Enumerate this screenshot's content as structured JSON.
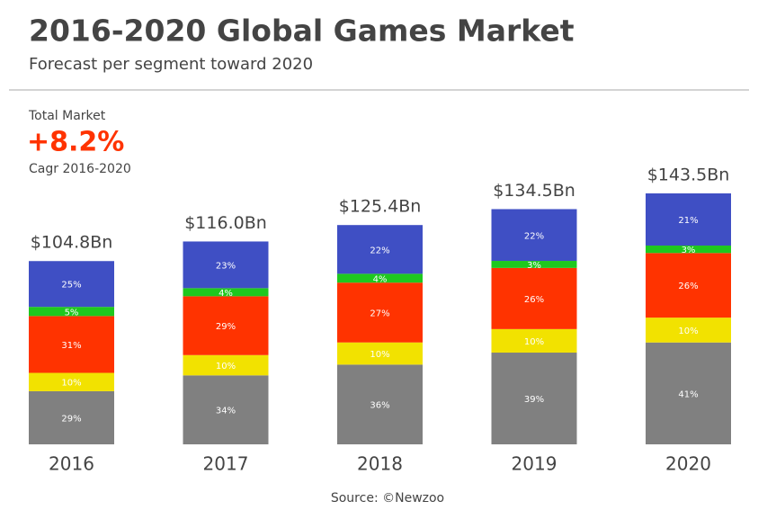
{
  "chart_data": {
    "type": "stacked-bar",
    "title": "2016-2020 Global Games Market",
    "subtitle": "Forecast per segment toward 2020",
    "annotation": {
      "heading": "Total Market",
      "value": "+8.2%",
      "note": "Cagr 2016-2020"
    },
    "source": "Source: ©Newzoo",
    "categories": [
      "2016",
      "2017",
      "2018",
      "2019",
      "2020"
    ],
    "totals": {
      "values": [
        104.8,
        116.0,
        125.4,
        134.5,
        143.5
      ],
      "value_labels": [
        "$104.8Bn",
        "$116.0Bn",
        "$125.4Bn",
        "$134.5Bn",
        "$143.5Bn"
      ]
    },
    "series": [
      {
        "color": "#808080",
        "values": [
          29,
          34,
          36,
          39,
          41
        ],
        "value_labels": [
          "29%",
          "34%",
          "36%",
          "39%",
          "41%"
        ]
      },
      {
        "color": "#f2e200",
        "values": [
          10,
          10,
          10,
          10,
          10
        ],
        "value_labels": [
          "10%",
          "10%",
          "10%",
          "10%",
          "10%"
        ]
      },
      {
        "color": "#ff3300",
        "values": [
          31,
          29,
          27,
          26,
          26
        ],
        "value_labels": [
          "31%",
          "29%",
          "27%",
          "26%",
          "26%"
        ]
      },
      {
        "color": "#1ec81e",
        "values": [
          5,
          4,
          4,
          3,
          3
        ],
        "value_labels": [
          "5%",
          "4%",
          "4%",
          "3%",
          "3%"
        ]
      },
      {
        "color": "#3f4fc4",
        "values": [
          25,
          23,
          22,
          22,
          21
        ],
        "value_labels": [
          "25%",
          "23%",
          "22%",
          "22%",
          "21%"
        ]
      }
    ]
  }
}
